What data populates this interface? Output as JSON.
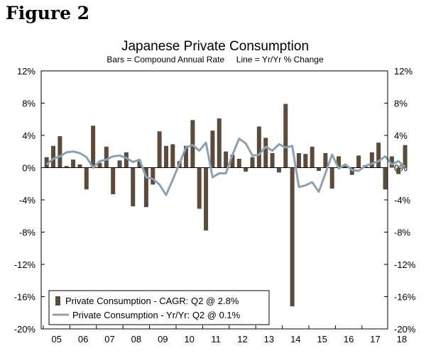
{
  "figure_label": "Figure 2",
  "colors": {
    "bar": "#5c4a3a",
    "line": "#8aa1b4",
    "axis": "#000000"
  },
  "chart_data": {
    "type": "bar+line",
    "title": "Japanese Private Consumption",
    "subtitle": "Bars = Compound Annual Rate     Line = Yr/Yr % Change",
    "ylim": [
      -20,
      12
    ],
    "y_ticks": [
      12,
      8,
      4,
      0,
      -4,
      -8,
      -12,
      -16,
      -20
    ],
    "y_left_labels": [
      "12%",
      "8%",
      "4%",
      "0%",
      "-4%",
      "-8%",
      "-12%",
      "-16%",
      "-20%"
    ],
    "y_right_labels": [
      "12%",
      "8%",
      "4%",
      "0%",
      "-4%",
      "-8%",
      "-12%",
      "-16%",
      "-20%"
    ],
    "x_labels": [
      "05",
      "06",
      "07",
      "08",
      "09",
      "10",
      "11",
      "12",
      "13",
      "14",
      "15",
      "16",
      "17",
      "18"
    ],
    "x_start_year": 2005,
    "series": [
      {
        "name": "Private Consumption - CAGR: Q2 @ 2.8%",
        "kind": "bar",
        "values": [
          1.3,
          2.7,
          3.9,
          0.2,
          1.0,
          0.4,
          -2.7,
          5.2,
          0.6,
          2.6,
          -3.3,
          0.9,
          1.9,
          -4.8,
          0.8,
          -4.9,
          -2.1,
          4.5,
          2.7,
          2.9,
          0.8,
          2.7,
          5.9,
          -5.1,
          -7.8,
          4.6,
          6.1,
          2.0,
          1.6,
          1.1,
          -0.5,
          1.3,
          5.1,
          3.7,
          1.8,
          -0.6,
          7.9,
          -17.2,
          1.8,
          1.7,
          2.6,
          -0.4,
          1.8,
          -2.6,
          1.4,
          0.2,
          -0.9,
          1.5,
          0.3,
          1.9,
          3.1,
          -2.7,
          1.4,
          -0.8,
          2.8
        ]
      },
      {
        "name": "Private Consumption - Yr/Yr: Q2 @ 0.1%",
        "kind": "line",
        "values": [
          0.4,
          1.1,
          1.4,
          1.9,
          2.0,
          1.8,
          1.3,
          0.0,
          0.8,
          1.0,
          1.4,
          1.5,
          1.2,
          0.7,
          1.0,
          -1.2,
          -1.4,
          -2.1,
          -3.4,
          -1.5,
          0.5,
          2.5,
          2.8,
          2.1,
          3.1,
          -1.2,
          -0.7,
          -0.7,
          1.6,
          3.6,
          3.0,
          1.5,
          1.6,
          2.6,
          2.1,
          2.9,
          2.5,
          2.7,
          -2.4,
          -2.2,
          -1.8,
          -3.0,
          -0.7,
          1.6,
          -0.1,
          0.4,
          -0.3,
          -0.4,
          0.2,
          0.5,
          0.8,
          1.4,
          0.4,
          0.8,
          0.1
        ]
      }
    ],
    "legend": [
      "Private Consumption - CAGR: Q2 @ 2.8%",
      "Private Consumption - Yr/Yr: Q2 @ 0.1%"
    ],
    "legend_position": "bottom-left"
  }
}
